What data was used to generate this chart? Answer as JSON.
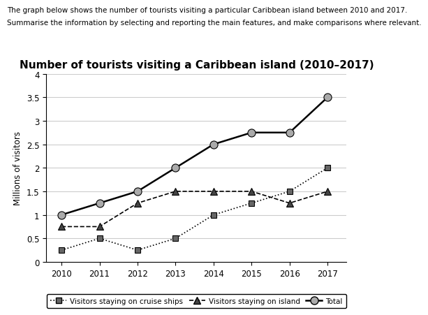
{
  "title": "Number of tourists visiting a Caribbean island (2010–2017)",
  "header_line1": "The graph below shows the number of tourists visiting a particular Caribbean island between 2010 and 2017.",
  "header_line2": "Summarise the information by selecting and reporting the main features, and make comparisons where relevant.",
  "ylabel": "Millions of visitors",
  "years": [
    2010,
    2011,
    2012,
    2013,
    2014,
    2015,
    2016,
    2017
  ],
  "cruise_ships": [
    0.25,
    0.5,
    0.25,
    0.5,
    1.0,
    1.25,
    1.5,
    2.0
  ],
  "island": [
    0.75,
    0.75,
    1.25,
    1.5,
    1.5,
    1.5,
    1.25,
    1.5
  ],
  "total": [
    1.0,
    1.25,
    1.5,
    2.0,
    2.5,
    2.75,
    2.75,
    3.5
  ],
  "ylim": [
    0,
    4
  ],
  "yticks": [
    0,
    0.5,
    1.0,
    1.5,
    2.0,
    2.5,
    3.0,
    3.5,
    4.0
  ],
  "grid_color": "#cccccc",
  "line_color": "#000000",
  "cruise_marker": "s",
  "island_marker": "^",
  "total_marker": "o",
  "marker_facecolor_cruise": "#666666",
  "marker_facecolor_island": "#444444",
  "marker_facecolor_total": "#aaaaaa",
  "legend_cruise": "Visitors staying on cruise ships",
  "legend_island": "Visitors staying on island",
  "legend_total": "Total",
  "title_fontsize": 11,
  "label_fontsize": 8.5,
  "tick_fontsize": 8.5,
  "header_fontsize": 7.5
}
